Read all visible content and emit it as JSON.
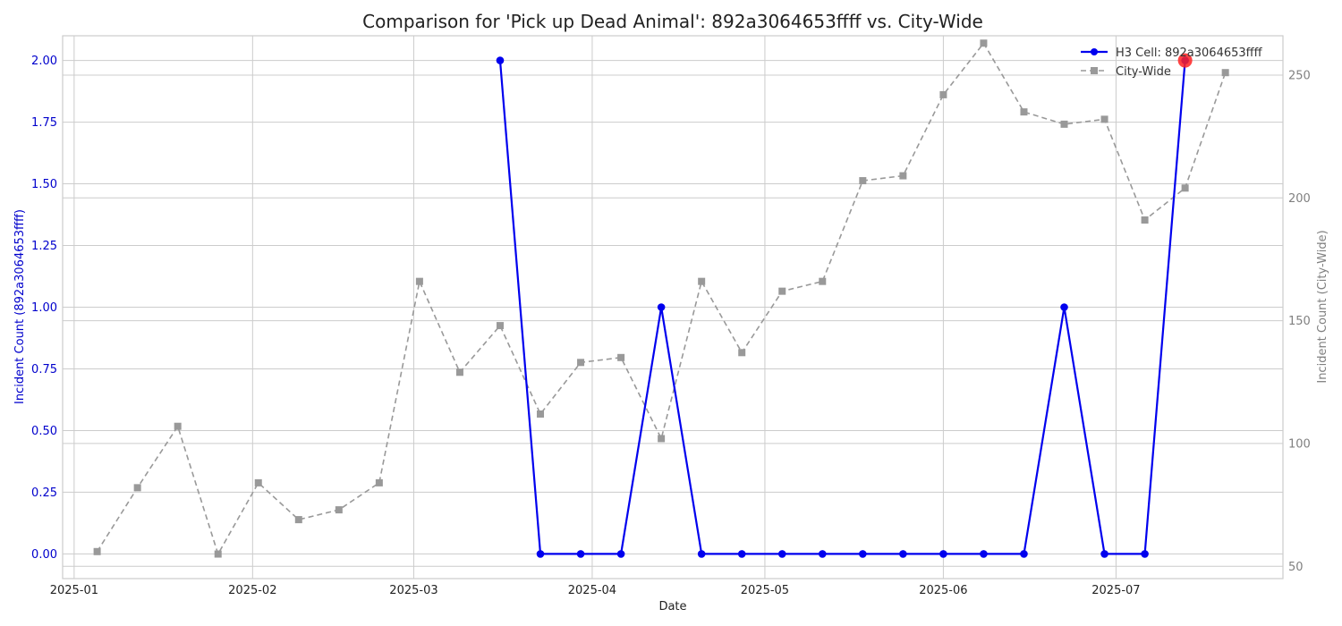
{
  "chart_data": {
    "type": "line",
    "title": "Comparison for 'Pick up Dead Animal': 892a3064653ffff vs. City-Wide",
    "xlabel": "Date",
    "ylabel_left": "Incident Count (892a3064653ffff)",
    "ylabel_right": "Incident Count (City-Wide)",
    "x_range": [
      "2024-12-30",
      "2025-07-30"
    ],
    "x_ticks": [
      "2025-01",
      "2025-02",
      "2025-03",
      "2025-04",
      "2025-05",
      "2025-06",
      "2025-07"
    ],
    "x_tick_dates": [
      "2025-01-01",
      "2025-02-01",
      "2025-03-01",
      "2025-04-01",
      "2025-05-01",
      "2025-06-01",
      "2025-07-01"
    ],
    "y_left_range": [
      -0.1,
      2.1
    ],
    "y_left_ticks": [
      "0.00",
      "0.25",
      "0.50",
      "0.75",
      "1.00",
      "1.25",
      "1.50",
      "1.75",
      "2.00"
    ],
    "y_right_range": [
      45,
      266
    ],
    "y_right_ticks": [
      "50",
      "100",
      "150",
      "200",
      "250"
    ],
    "grid": true,
    "legend_position": "top-right",
    "colors": {
      "h3": "#0000ee",
      "city": "#999999",
      "highlight": "#ff2222",
      "left_axis": "#0000cc",
      "right_axis": "#808080",
      "grid": "#cccccc"
    },
    "series": [
      {
        "name": "H3 Cell: 892a3064653ffff",
        "axis": "left",
        "marker": "circle",
        "x": [
          "2025-03-16",
          "2025-03-23",
          "2025-03-30",
          "2025-04-06",
          "2025-04-13",
          "2025-04-20",
          "2025-04-27",
          "2025-05-04",
          "2025-05-11",
          "2025-05-18",
          "2025-05-25",
          "2025-06-01",
          "2025-06-08",
          "2025-06-15",
          "2025-06-22",
          "2025-06-29",
          "2025-07-06",
          "2025-07-13"
        ],
        "values": [
          2,
          0,
          0,
          0,
          1,
          0,
          0,
          0,
          0,
          0,
          0,
          0,
          0,
          0,
          1,
          0,
          0,
          2
        ]
      },
      {
        "name": "City-Wide",
        "axis": "right",
        "marker": "square",
        "x": [
          "2025-01-05",
          "2025-01-12",
          "2025-01-19",
          "2025-01-26",
          "2025-02-02",
          "2025-02-09",
          "2025-02-16",
          "2025-02-23",
          "2025-03-02",
          "2025-03-09",
          "2025-03-16",
          "2025-03-23",
          "2025-03-30",
          "2025-04-06",
          "2025-04-13",
          "2025-04-20",
          "2025-04-27",
          "2025-05-04",
          "2025-05-11",
          "2025-05-18",
          "2025-05-25",
          "2025-06-01",
          "2025-06-08",
          "2025-06-15",
          "2025-06-22",
          "2025-06-29",
          "2025-07-06",
          "2025-07-13",
          "2025-07-20"
        ],
        "values": [
          56,
          82,
          107,
          55,
          84,
          69,
          73,
          84,
          166,
          129,
          148,
          112,
          133,
          135,
          102,
          166,
          137,
          162,
          166,
          207,
          209,
          242,
          263,
          235,
          230,
          232,
          191,
          204,
          251
        ]
      }
    ],
    "highlight_point": {
      "x": "2025-07-13",
      "value": 2,
      "axis": "left"
    }
  }
}
